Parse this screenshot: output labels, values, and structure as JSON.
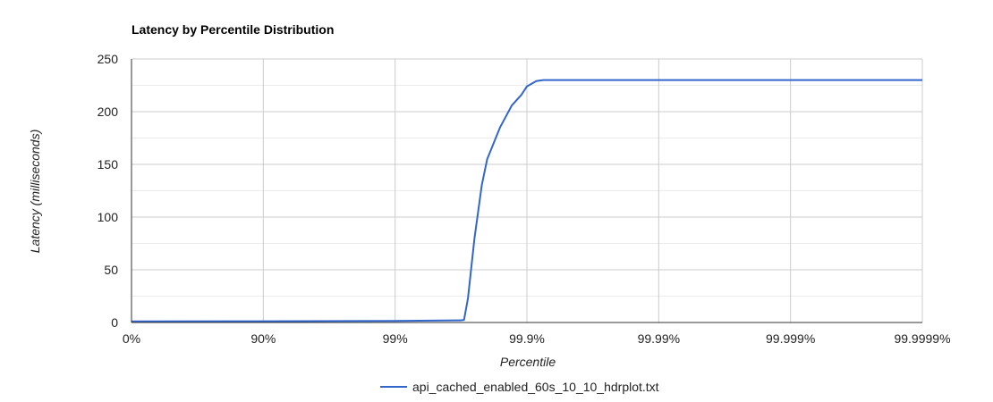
{
  "chart_data": {
    "type": "line",
    "title": "Latency by Percentile Distribution",
    "xlabel": "Percentile",
    "ylabel": "Latency (milliseconds)",
    "x_scale": "reciprocal-percentile-log",
    "x_ticks": [
      "0%",
      "90%",
      "99%",
      "99.9%",
      "99.99%",
      "99.999%",
      "99.9999%"
    ],
    "y_ticks": [
      0,
      50,
      100,
      150,
      200,
      250
    ],
    "ylim": [
      0,
      250
    ],
    "grid": true,
    "legend_position": "bottom",
    "colors": {
      "series": "#3366cc",
      "grid_major": "#cccccc",
      "grid_minor": "#ebebeb",
      "axis": "#333333"
    },
    "series": [
      {
        "name": "api_cached_enabled_60s_10_10_hdrplot.txt",
        "x": [
          "0%",
          "90%",
          "99%",
          "99.68%",
          "99.7%",
          "99.72%",
          "99.75%",
          "99.78%",
          "99.8%",
          "99.84%",
          "99.87%",
          "99.89%",
          "99.9%",
          "99.915%",
          "99.925%",
          "99.93%",
          "99.9999%"
        ],
        "y": [
          1,
          1.2,
          1.5,
          2,
          2.5,
          23,
          80,
          130,
          155,
          185,
          206,
          216,
          224,
          229,
          230,
          230,
          230
        ]
      }
    ]
  }
}
